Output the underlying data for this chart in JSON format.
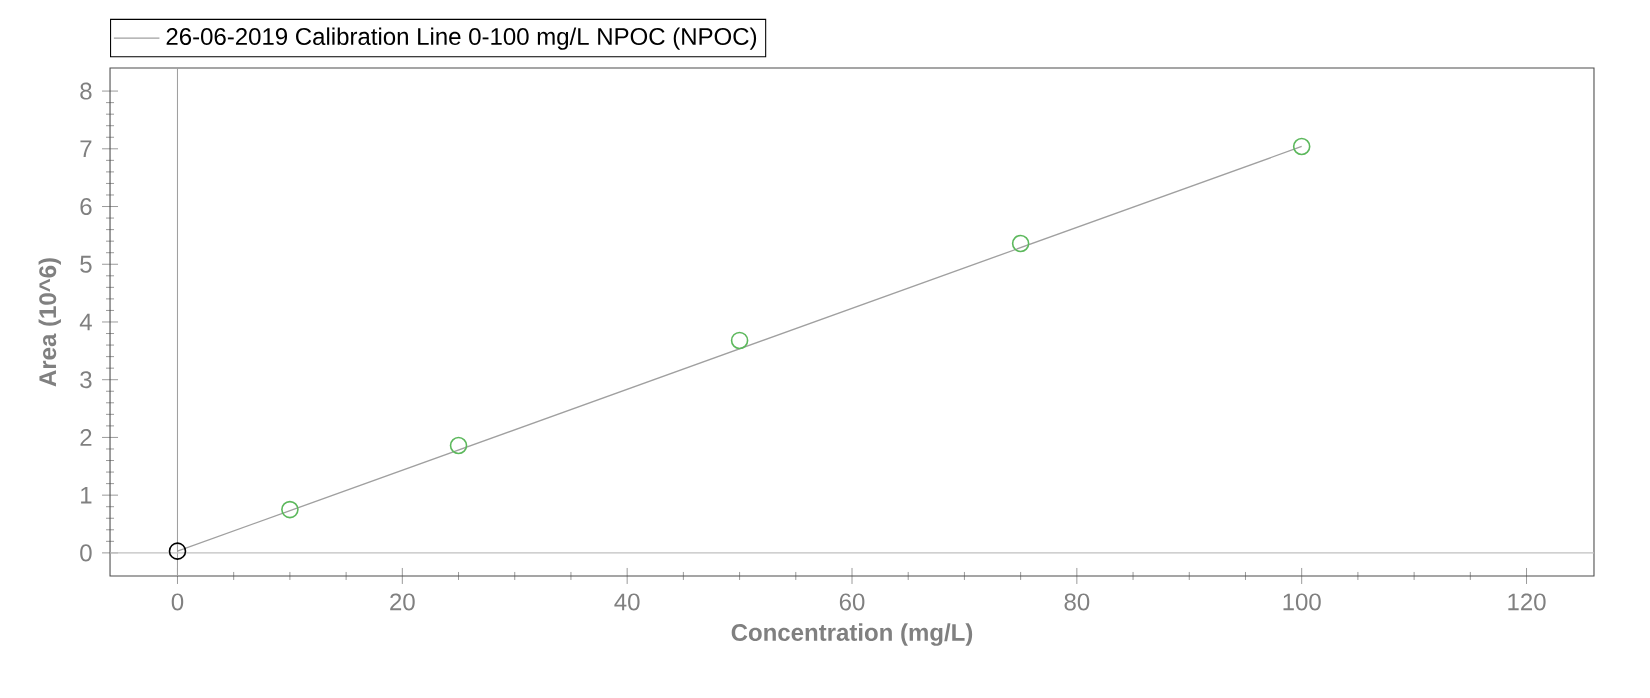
{
  "chart_data": {
    "type": "scatter",
    "xlabel": "Concentration (mg/L)",
    "ylabel": "Area (10^6)",
    "xlim": [
      -6,
      126
    ],
    "ylim": [
      -0.4,
      8.4
    ],
    "xticks": [
      0,
      20,
      40,
      60,
      80,
      100,
      120
    ],
    "yticks": [
      0,
      1,
      2,
      3,
      4,
      5,
      6,
      7,
      8
    ],
    "series": [
      {
        "name": "26-06-2019 Calibration Line 0-100 mg/L NPOC (NPOC)",
        "type": "line",
        "marker": "none",
        "color": "#a0a0a0",
        "x": [
          0,
          100
        ],
        "values": [
          0.03,
          7.04
        ]
      },
      {
        "color": "#5cb85c",
        "x": [
          10,
          25,
          50,
          75,
          100
        ],
        "values": [
          0.75,
          1.86,
          3.68,
          5.36,
          7.04
        ]
      },
      {
        "color": "#000000",
        "x": [
          0
        ],
        "values": [
          0.03
        ]
      }
    ],
    "ref_lines": [
      {
        "axis": "x",
        "value": 0,
        "color": "#a0a0a0"
      },
      {
        "axis": "y",
        "value": 0,
        "color": "#c0c0c0"
      }
    ],
    "marker": "circle",
    "legend": "top left",
    "grid": false
  }
}
